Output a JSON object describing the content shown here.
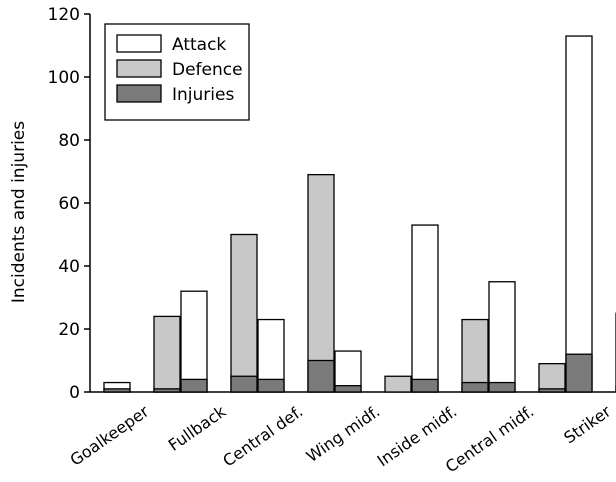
{
  "chart_data": {
    "type": "bar",
    "title": "",
    "xlabel": "",
    "ylabel": "Incidents and injuries",
    "ylim": [
      0,
      120
    ],
    "yticks": [
      0,
      20,
      40,
      60,
      80,
      100,
      120
    ],
    "categories": [
      "Goalkeeper",
      "Fullback",
      "Central def.",
      "Wing midf.",
      "Inside midf.",
      "Central midf.",
      "Striker"
    ],
    "series": [
      {
        "name": "Attack",
        "values": [
          3,
          32,
          23,
          13,
          53,
          35,
          113
        ],
        "color": "#ffffff"
      },
      {
        "name": "Defence",
        "values": [
          24,
          50,
          69,
          5,
          23,
          9,
          25
        ],
        "color": "#c8c8c8"
      },
      {
        "name": "Injuries",
        "values": [
          1,
          4,
          4,
          2,
          4,
          3,
          12
        ],
        "color": "#7a7a7a"
      }
    ],
    "injuries_by_bar": {
      "attack": [
        1,
        4,
        4,
        2,
        4,
        3,
        12
      ],
      "defence": [
        1,
        5,
        10,
        0,
        3,
        1,
        2
      ]
    },
    "grid": false,
    "legend_position": "top-left"
  }
}
